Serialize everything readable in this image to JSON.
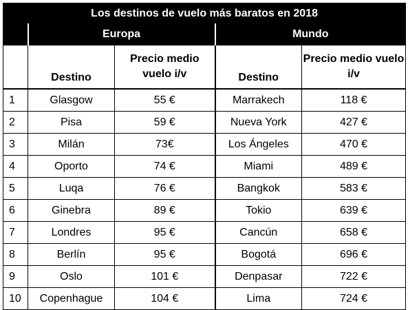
{
  "title": "Los destinos de vuelo más baratos en 2018",
  "groups": {
    "europe": "Europa",
    "world": "Mundo"
  },
  "headers": {
    "num": "",
    "europe_destination": "Destino",
    "europe_price": "Precio medio vuelo i/v",
    "world_destination": "Destino",
    "world_price": "Precio medio vuelo i/v"
  },
  "rows": [
    {
      "rank": "1",
      "eu_dest": "Glasgow",
      "eu_price": "55 €",
      "w_dest": "Marrakech",
      "w_price": "118 €"
    },
    {
      "rank": "2",
      "eu_dest": "Pisa",
      "eu_price": "59 €",
      "w_dest": "Nueva York",
      "w_price": "427 €"
    },
    {
      "rank": "3",
      "eu_dest": "Milán",
      "eu_price": "73€",
      "w_dest": "Los Ángeles",
      "w_price": "470 €"
    },
    {
      "rank": "4",
      "eu_dest": "Oporto",
      "eu_price": "74 €",
      "w_dest": "Miami",
      "w_price": "489 €"
    },
    {
      "rank": "5",
      "eu_dest": "Luqa",
      "eu_price": "76 €",
      "w_dest": "Bangkok",
      "w_price": "583 €"
    },
    {
      "rank": "6",
      "eu_dest": "Ginebra",
      "eu_price": "89 €",
      "w_dest": "Tokio",
      "w_price": "639 €"
    },
    {
      "rank": "7",
      "eu_dest": "Londres",
      "eu_price": "95 €",
      "w_dest": "Cancún",
      "w_price": "658 €"
    },
    {
      "rank": "8",
      "eu_dest": "Berlín",
      "eu_price": "95 €",
      "w_dest": "Bogotá",
      "w_price": "696 €"
    },
    {
      "rank": "9",
      "eu_dest": "Oslo",
      "eu_price": "101 €",
      "w_dest": "Denpasar",
      "w_price": "722 €"
    },
    {
      "rank": "10",
      "eu_dest": "Copenhague",
      "eu_price": "104 €",
      "w_dest": "Lima",
      "w_price": "724 €"
    }
  ]
}
